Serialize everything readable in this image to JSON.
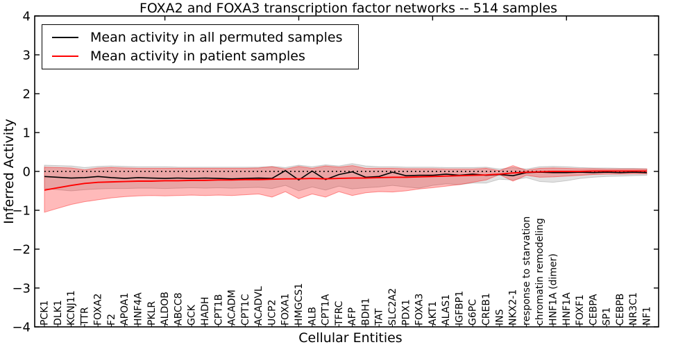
{
  "figure": {
    "title": "FOXA2 and FOXA3 transcription factor networks -- 514 samples"
  },
  "legend": {
    "position": "upper left",
    "items": [
      {
        "label": "Mean activity in all permuted samples",
        "color": "#000000"
      },
      {
        "label": "Mean activity in patient samples",
        "color": "#ff0000"
      }
    ]
  },
  "chart_data": {
    "type": "line",
    "title": "FOXA2 and FOXA3 transcription factor networks -- 514 samples",
    "xlabel": "Cellular Entities",
    "ylabel": "Inferred Activity",
    "ylim": [
      -4,
      4
    ],
    "yticks": [
      4,
      3,
      2,
      1,
      0,
      -1,
      -2,
      -3,
      -4
    ],
    "ytick_labels": [
      "4",
      "3",
      "2",
      "1",
      "0",
      "−1",
      "−2",
      "−3",
      "−4"
    ],
    "grid": false,
    "x_tick_rotation": 90,
    "legend_position": "upper left",
    "top_tick_indices": [
      9,
      19,
      29,
      39
    ],
    "reference_line": {
      "y": 0,
      "style": "dotted",
      "color": "#000000"
    },
    "colors": {
      "permuted_line": "#000000",
      "patient_line": "#ff0000",
      "permuted_band_fill": "rgba(120,120,120,0.22)",
      "permuted_band_edge": "rgba(120,120,120,0.35)",
      "patient_band_fill": "rgba(255,0,0,0.27)",
      "patient_band_edge": "rgba(255,0,0,0.40)"
    },
    "categories": [
      "PCK1",
      "DLK1",
      "KCNJ11",
      "TTR",
      "FOXA2",
      "F2",
      "APOA1",
      "HNF4A",
      "PKLR",
      "ALDOB",
      "ABCC8",
      "GCK",
      "HADH",
      "CPT1B",
      "ACADM",
      "CPT1C",
      "ACADVL",
      "UCP2",
      "FOXA1",
      "HMGCS1",
      "ALB",
      "CPT1A",
      "TFRC",
      "AFP",
      "BDH1",
      "TAT",
      "SLC2A2",
      "PDX1",
      "FOXA3",
      "AKT1",
      "ALAS1",
      "IGFBP1",
      "G6PC",
      "CREB1",
      "INS",
      "NKX2-1",
      "response to starvation",
      "chromatin remodeling",
      "HNF1A (dimer)",
      "HNF1A",
      "FOXF1",
      "CEBPA",
      "SP1",
      "CEBPB",
      "NR3C1",
      "NF1"
    ],
    "series": [
      {
        "name": "Mean activity in all permuted samples",
        "color": "#000000",
        "values": [
          -0.13,
          -0.15,
          -0.17,
          -0.16,
          -0.13,
          -0.16,
          -0.18,
          -0.16,
          -0.17,
          -0.18,
          -0.17,
          -0.18,
          -0.17,
          -0.18,
          -0.19,
          -0.18,
          -0.17,
          -0.18,
          0.02,
          -0.22,
          0.01,
          -0.21,
          -0.08,
          -0.01,
          -0.15,
          -0.13,
          -0.02,
          -0.11,
          -0.1,
          -0.1,
          -0.07,
          -0.1,
          -0.07,
          -0.1,
          -0.08,
          -0.11,
          -0.03,
          -0.02,
          -0.03,
          -0.03,
          -0.02,
          -0.03,
          -0.02,
          -0.03,
          -0.02,
          -0.03
        ]
      },
      {
        "name": "Mean activity in patient samples",
        "color": "#ff0000",
        "values": [
          -0.48,
          -0.42,
          -0.36,
          -0.31,
          -0.28,
          -0.27,
          -0.26,
          -0.25,
          -0.25,
          -0.24,
          -0.24,
          -0.23,
          -0.23,
          -0.22,
          -0.22,
          -0.21,
          -0.21,
          -0.2,
          -0.19,
          -0.19,
          -0.18,
          -0.19,
          -0.18,
          -0.17,
          -0.17,
          -0.16,
          -0.15,
          -0.15,
          -0.14,
          -0.13,
          -0.12,
          -0.11,
          -0.1,
          -0.09,
          -0.07,
          -0.04,
          -0.02,
          -0.01,
          0.0,
          0.0,
          0.0,
          0.01,
          0.01,
          0.01,
          0.01,
          0.01
        ]
      }
    ],
    "bands": [
      {
        "name": "permuted-samples-range",
        "upper": [
          0.16,
          0.15,
          0.14,
          0.1,
          0.13,
          0.14,
          0.13,
          0.12,
          0.12,
          0.12,
          0.11,
          0.11,
          0.11,
          0.11,
          0.11,
          0.11,
          0.11,
          0.13,
          0.1,
          0.16,
          0.12,
          0.17,
          0.14,
          0.2,
          0.14,
          0.12,
          0.12,
          0.11,
          0.11,
          0.11,
          0.1,
          0.1,
          0.1,
          0.11,
          0.06,
          0.1,
          0.06,
          0.12,
          0.13,
          0.12,
          0.1,
          0.09,
          0.09,
          0.08,
          0.08,
          0.07
        ],
        "lower": [
          -0.44,
          -0.47,
          -0.5,
          -0.47,
          -0.45,
          -0.44,
          -0.44,
          -0.43,
          -0.43,
          -0.44,
          -0.43,
          -0.42,
          -0.43,
          -0.42,
          -0.43,
          -0.42,
          -0.41,
          -0.44,
          -0.36,
          -0.5,
          -0.4,
          -0.48,
          -0.38,
          -0.45,
          -0.42,
          -0.4,
          -0.36,
          -0.4,
          -0.43,
          -0.36,
          -0.32,
          -0.34,
          -0.3,
          -0.3,
          -0.2,
          -0.22,
          -0.16,
          -0.26,
          -0.28,
          -0.24,
          -0.18,
          -0.15,
          -0.13,
          -0.12,
          -0.11,
          -0.1
        ]
      },
      {
        "name": "patient-samples-range",
        "upper": [
          0.11,
          0.1,
          0.09,
          0.04,
          0.09,
          0.1,
          0.09,
          0.08,
          0.08,
          0.08,
          0.08,
          0.08,
          0.08,
          0.08,
          0.08,
          0.08,
          0.09,
          0.12,
          0.06,
          0.13,
          0.08,
          0.14,
          0.11,
          0.15,
          0.08,
          0.08,
          0.08,
          0.07,
          0.07,
          0.07,
          0.06,
          0.06,
          0.06,
          0.08,
          0.02,
          0.15,
          0.03,
          0.08,
          0.09,
          0.08,
          0.07,
          0.07,
          0.06,
          0.06,
          0.06,
          0.06
        ],
        "lower": [
          -1.05,
          -0.95,
          -0.85,
          -0.78,
          -0.73,
          -0.68,
          -0.65,
          -0.63,
          -0.62,
          -0.63,
          -0.62,
          -0.61,
          -0.62,
          -0.61,
          -0.62,
          -0.6,
          -0.58,
          -0.66,
          -0.52,
          -0.7,
          -0.58,
          -0.66,
          -0.52,
          -0.62,
          -0.55,
          -0.52,
          -0.53,
          -0.5,
          -0.45,
          -0.42,
          -0.38,
          -0.34,
          -0.28,
          -0.22,
          -0.08,
          -0.25,
          -0.1,
          -0.15,
          -0.14,
          -0.12,
          -0.1,
          -0.08,
          -0.07,
          -0.07,
          -0.06,
          -0.06
        ]
      }
    ]
  }
}
